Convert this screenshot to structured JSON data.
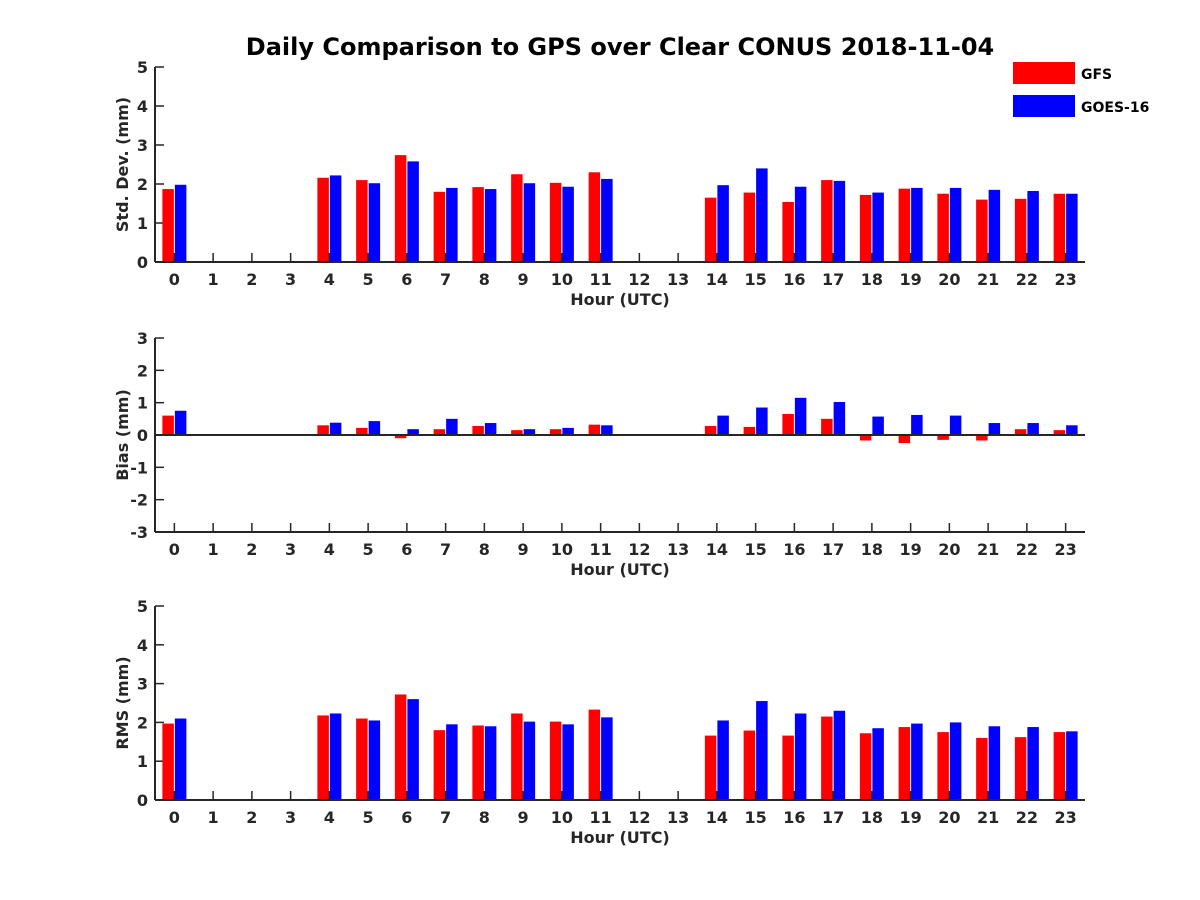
{
  "title": "Daily Comparison to GPS over Clear CONUS 2018-11-04",
  "colors": {
    "GFS": "#ff0000",
    "GOES-16": "#0000ff"
  },
  "legend": [
    "GFS",
    "GOES-16"
  ],
  "chart_data": [
    {
      "type": "bar",
      "ylabel": "Std. Dev. (mm)",
      "xlabel": "Hour (UTC)",
      "ylim": [
        0,
        5
      ],
      "yticks": [
        0,
        1,
        2,
        3,
        4,
        5
      ],
      "categories": [
        "0",
        "1",
        "2",
        "3",
        "4",
        "5",
        "6",
        "7",
        "8",
        "9",
        "10",
        "11",
        "12",
        "13",
        "14",
        "15",
        "16",
        "17",
        "18",
        "19",
        "20",
        "21",
        "22",
        "23"
      ],
      "series": [
        {
          "name": "GFS",
          "values": [
            1.87,
            null,
            null,
            null,
            2.16,
            2.1,
            2.74,
            1.8,
            1.92,
            2.25,
            2.03,
            2.3,
            null,
            null,
            1.65,
            1.78,
            1.54,
            2.1,
            1.72,
            1.88,
            1.75,
            1.6,
            1.62,
            1.75
          ]
        },
        {
          "name": "GOES-16",
          "values": [
            1.98,
            null,
            null,
            null,
            2.22,
            2.02,
            2.58,
            1.9,
            1.87,
            2.02,
            1.93,
            2.13,
            null,
            null,
            1.97,
            2.4,
            1.93,
            2.08,
            1.78,
            1.9,
            1.9,
            1.85,
            1.82,
            1.75
          ]
        }
      ]
    },
    {
      "type": "bar",
      "ylabel": "Bias (mm)",
      "xlabel": "Hour (UTC)",
      "ylim": [
        -3,
        3
      ],
      "yticks": [
        -3,
        -2,
        -1,
        0,
        1,
        2,
        3
      ],
      "categories": [
        "0",
        "1",
        "2",
        "3",
        "4",
        "5",
        "6",
        "7",
        "8",
        "9",
        "10",
        "11",
        "12",
        "13",
        "14",
        "15",
        "16",
        "17",
        "18",
        "19",
        "20",
        "21",
        "22",
        "23"
      ],
      "series": [
        {
          "name": "GFS",
          "values": [
            0.6,
            null,
            null,
            null,
            0.3,
            0.22,
            -0.1,
            0.18,
            0.28,
            0.15,
            0.18,
            0.32,
            null,
            null,
            0.28,
            0.25,
            0.65,
            0.5,
            -0.17,
            -0.25,
            -0.15,
            -0.17,
            0.18,
            0.15
          ]
        },
        {
          "name": "GOES-16",
          "values": [
            0.75,
            null,
            null,
            null,
            0.38,
            0.43,
            0.18,
            0.5,
            0.37,
            0.18,
            0.22,
            0.3,
            null,
            null,
            0.6,
            0.85,
            1.15,
            1.02,
            0.57,
            0.62,
            0.6,
            0.37,
            0.37,
            0.3
          ]
        }
      ]
    },
    {
      "type": "bar",
      "ylabel": "RMS (mm)",
      "xlabel": "Hour (UTC)",
      "ylim": [
        0,
        5
      ],
      "yticks": [
        0,
        1,
        2,
        3,
        4,
        5
      ],
      "categories": [
        "0",
        "1",
        "2",
        "3",
        "4",
        "5",
        "6",
        "7",
        "8",
        "9",
        "10",
        "11",
        "12",
        "13",
        "14",
        "15",
        "16",
        "17",
        "18",
        "19",
        "20",
        "21",
        "22",
        "23"
      ],
      "series": [
        {
          "name": "GFS",
          "values": [
            1.97,
            null,
            null,
            null,
            2.18,
            2.1,
            2.72,
            1.8,
            1.92,
            2.23,
            2.02,
            2.33,
            null,
            null,
            1.66,
            1.79,
            1.66,
            2.15,
            1.72,
            1.88,
            1.75,
            1.6,
            1.62,
            1.75
          ]
        },
        {
          "name": "GOES-16",
          "values": [
            2.1,
            null,
            null,
            null,
            2.23,
            2.05,
            2.6,
            1.95,
            1.9,
            2.02,
            1.95,
            2.13,
            null,
            null,
            2.05,
            2.55,
            2.23,
            2.3,
            1.85,
            1.97,
            2.0,
            1.9,
            1.88,
            1.77
          ]
        }
      ]
    }
  ]
}
